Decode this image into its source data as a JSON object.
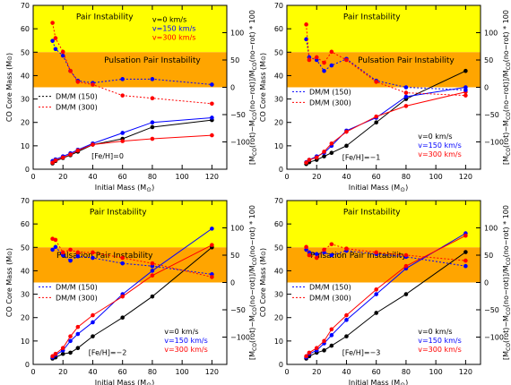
{
  "shared": {
    "xlabel": "Initial Mass (M",
    "ylabel_left": "CO Core Mass (M",
    "ylabel_right": "[M",
    "sun_symbol": "⊙",
    "band_labels": [
      "Pair Instability",
      "Pulsation Pair Instability"
    ],
    "dm_legend": [
      "DM/M (150)",
      "DM/M (300)"
    ],
    "v_legend": [
      "v=0 km/s",
      "v=150 km/s",
      "v=300 km/s"
    ],
    "colors": {
      "v0": "#000000",
      "v150": "#0000ff",
      "v300": "#ff0000",
      "pair": "#ffff00",
      "ppi": "#ffa500"
    },
    "xlim": [
      0,
      130
    ],
    "xticks": [
      0,
      20,
      40,
      60,
      80,
      100,
      120
    ],
    "ylim_left": [
      0,
      70
    ],
    "yticks_left": [
      0,
      10,
      20,
      30,
      40,
      50,
      60,
      70
    ],
    "ylim_right": [
      -150,
      150
    ],
    "yticks_right": [
      -100,
      -50,
      0,
      50,
      100
    ],
    "pair_band_left_units": [
      50,
      70
    ],
    "ppi_band_left_units": [
      35,
      50
    ]
  },
  "chart_data": [
    {
      "type": "line",
      "annotation": "[Fe/H]=0",
      "legend_placement": "top-right",
      "x": [
        13,
        15,
        20,
        25,
        30,
        40,
        60,
        80,
        120
      ],
      "series": [
        {
          "name": "v=0 km/s",
          "axis": "left",
          "values": [
            2.5,
            3.5,
            4.8,
            6.0,
            7.5,
            10.5,
            13.0,
            18.0,
            21.0
          ]
        },
        {
          "name": "v=150 km/s",
          "axis": "left",
          "values": [
            3.5,
            4.2,
            5.5,
            6.8,
            8.3,
            11.0,
            15.5,
            20.0,
            22.0
          ]
        },
        {
          "name": "v=300 km/s",
          "axis": "left",
          "values": [
            2.8,
            3.8,
            5.0,
            6.3,
            8.0,
            10.5,
            12.0,
            13.0,
            14.5
          ]
        },
        {
          "name": "DM/M (150)",
          "axis": "right",
          "values": [
            85,
            70,
            58,
            30,
            12,
            8,
            15,
            15,
            5
          ]
        },
        {
          "name": "DM/M (300)",
          "axis": "right",
          "values": [
            118,
            90,
            65,
            30,
            10,
            5,
            -15,
            -20,
            -30
          ]
        }
      ]
    },
    {
      "type": "line",
      "annotation": "[Fe/H]=−1",
      "legend_placement": "bottom-right",
      "x": [
        13,
        15,
        20,
        25,
        30,
        40,
        60,
        80,
        120
      ],
      "series": [
        {
          "name": "v=0 km/s",
          "axis": "left",
          "values": [
            2.2,
            3.0,
            4.0,
            5.5,
            7.0,
            10.0,
            20.0,
            30.0,
            42.0
          ]
        },
        {
          "name": "v=150 km/s",
          "axis": "left",
          "values": [
            3.0,
            4.0,
            5.5,
            7.0,
            10.0,
            16.5,
            22.0,
            31.0,
            35.0
          ]
        },
        {
          "name": "v=300 km/s",
          "axis": "left",
          "values": [
            2.8,
            4.0,
            5.0,
            7.5,
            11.0,
            16.0,
            22.5,
            27.0,
            33.0
          ]
        },
        {
          "name": "DM/M (150)",
          "axis": "right",
          "values": [
            88,
            55,
            50,
            30,
            40,
            52,
            12,
            0,
            -5
          ]
        },
        {
          "name": "DM/M (300)",
          "axis": "right",
          "values": [
            115,
            50,
            55,
            45,
            65,
            50,
            10,
            -10,
            -15
          ]
        }
      ]
    },
    {
      "type": "line",
      "annotation": "[Fe/H]=−2",
      "legend_placement": "bottom-right",
      "x": [
        13,
        15,
        20,
        25,
        30,
        40,
        60,
        80,
        120
      ],
      "series": [
        {
          "name": "v=0 km/s",
          "axis": "left",
          "values": [
            2.5,
            3.0,
            4.5,
            5.0,
            7.0,
            12.0,
            20.0,
            29.0,
            50.0
          ]
        },
        {
          "name": "v=150 km/s",
          "axis": "left",
          "values": [
            3.0,
            4.0,
            6.0,
            10.0,
            13.0,
            18.0,
            30.0,
            40.0,
            58.0
          ]
        },
        {
          "name": "v=300 km/s",
          "axis": "left",
          "values": [
            3.5,
            4.5,
            7.0,
            12.0,
            16.0,
            21.0,
            29.0,
            38.0,
            51.0
          ]
        },
        {
          "name": "DM/M (150)",
          "axis": "right",
          "values": [
            60,
            65,
            50,
            40,
            48,
            45,
            35,
            30,
            15
          ]
        },
        {
          "name": "DM/M (300)",
          "axis": "right",
          "values": [
            80,
            78,
            55,
            60,
            55,
            55,
            45,
            35,
            10
          ]
        }
      ]
    },
    {
      "type": "line",
      "annotation": "[Fe/H]=−3",
      "legend_placement": "bottom-right",
      "x": [
        13,
        15,
        20,
        25,
        30,
        40,
        60,
        80,
        120
      ],
      "series": [
        {
          "name": "v=0 km/s",
          "axis": "left",
          "values": [
            2.5,
            3.5,
            5.0,
            6.0,
            8.0,
            12.0,
            22.0,
            30.0,
            48.0
          ]
        },
        {
          "name": "v=150 km/s",
          "axis": "left",
          "values": [
            3.0,
            4.5,
            6.0,
            9.0,
            12.5,
            19.0,
            30.0,
            41.0,
            56.0
          ]
        },
        {
          "name": "v=300 km/s",
          "axis": "left",
          "values": [
            3.5,
            5.0,
            7.0,
            10.0,
            15.0,
            21.0,
            32.0,
            42.0,
            55.0
          ]
        },
        {
          "name": "DM/M (150)",
          "axis": "right",
          "values": [
            60,
            55,
            52,
            55,
            50,
            58,
            52,
            47,
            30
          ]
        },
        {
          "name": "DM/M (300)",
          "axis": "right",
          "values": [
            65,
            50,
            45,
            60,
            70,
            62,
            55,
            50,
            40
          ]
        }
      ]
    }
  ]
}
